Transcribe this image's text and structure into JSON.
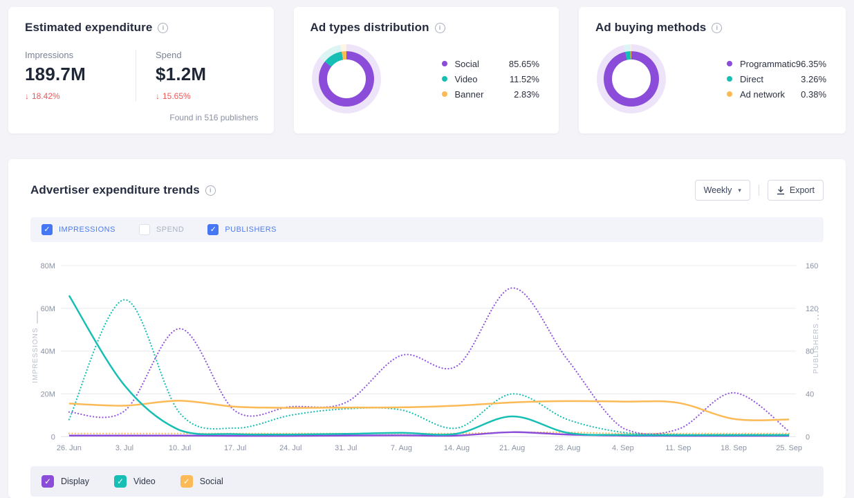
{
  "cards": {
    "expenditure": {
      "title": "Estimated expenditure",
      "metrics": [
        {
          "label": "Impressions",
          "value": "189.7M",
          "change": "18.42%",
          "direction": "down"
        },
        {
          "label": "Spend",
          "value": "$1.2M",
          "change": "15.65%",
          "direction": "down"
        }
      ],
      "footnote": "Found in 516 publishers"
    },
    "ad_types": {
      "title": "Ad types distribution",
      "slices": [
        {
          "label": "Social",
          "value": 85.65,
          "pct": "85.65%",
          "color": "#8A4CD9"
        },
        {
          "label": "Video",
          "value": 11.52,
          "pct": "11.52%",
          "color": "#17BEB4"
        },
        {
          "label": "Banner",
          "value": 2.83,
          "pct": "2.83%",
          "color": "#FBBA56"
        }
      ]
    },
    "ad_buying": {
      "title": "Ad buying methods",
      "slices": [
        {
          "label": "Programmatic",
          "value": 96.35,
          "pct": "96.35%",
          "color": "#8A4CD9"
        },
        {
          "label": "Direct",
          "value": 3.26,
          "pct": "3.26%",
          "color": "#17BEB4"
        },
        {
          "label": "Ad network",
          "value": 0.38,
          "pct": "0.38%",
          "color": "#FBBA56"
        }
      ]
    }
  },
  "trends": {
    "title": "Advertiser expenditure trends",
    "period_select": "Weekly",
    "export_label": "Export",
    "metric_toggles": [
      {
        "label": "IMPRESSIONS",
        "checked": true
      },
      {
        "label": "SPEND",
        "checked": false
      },
      {
        "label": "PUBLISHERS",
        "checked": true
      }
    ],
    "series_toggles": [
      {
        "label": "Display",
        "color": "#8A4CD9",
        "checked": true
      },
      {
        "label": "Video",
        "color": "#17BEB4",
        "checked": true
      },
      {
        "label": "Social",
        "color": "#FBBA56",
        "checked": true
      }
    ]
  },
  "chart_data": {
    "type": "line",
    "x": [
      "26. Jun",
      "3. Jul",
      "10. Jul",
      "17. Jul",
      "24. Jul",
      "31. Jul",
      "7. Aug",
      "14. Aug",
      "21. Aug",
      "28. Aug",
      "4. Sep",
      "11. Sep",
      "18. Sep",
      "25. Sep"
    ],
    "left_axis": {
      "label": "IMPRESSIONS",
      "ticks": [
        "80M",
        "60M",
        "40M",
        "20M",
        "0"
      ],
      "range": [
        0,
        80
      ],
      "unit": "M impressions"
    },
    "right_axis": {
      "label": "PUBLISHERS",
      "ticks": [
        "160",
        "120",
        "80",
        "40",
        "0"
      ],
      "range": [
        0,
        160
      ],
      "unit": "publishers"
    },
    "grid": true,
    "series": [
      {
        "name": "Social publishers",
        "axis": "right",
        "style": "dotted",
        "color": "#FBBA56",
        "values": [
          3,
          3,
          3,
          3,
          3,
          3,
          3,
          3,
          4,
          4,
          3,
          3,
          3,
          3
        ]
      },
      {
        "name": "Video publishers",
        "axis": "right",
        "style": "dotted",
        "color": "#17BEB4",
        "values": [
          16,
          128,
          22,
          8,
          20,
          26,
          25,
          8,
          40,
          16,
          4,
          2,
          2,
          2
        ]
      },
      {
        "name": "Display publishers",
        "axis": "right",
        "style": "dotted",
        "color": "#9257E0",
        "values": [
          23,
          24,
          101,
          24,
          28,
          32,
          76,
          66,
          139,
          72,
          8,
          7,
          41,
          5
        ]
      },
      {
        "name": "Social impressions",
        "axis": "left",
        "style": "solid",
        "color": "#FBBA56",
        "values": [
          15.5,
          14.5,
          16.8,
          14,
          13.5,
          13.6,
          13.7,
          14.5,
          16,
          16.6,
          16.4,
          15.8,
          8.3,
          8
        ]
      },
      {
        "name": "Display impressions",
        "axis": "left",
        "style": "solid",
        "color": "#8A4CD9",
        "values": [
          0.5,
          0.5,
          0.5,
          0.4,
          0.4,
          0.5,
          0.6,
          0.5,
          2.1,
          1,
          0.5,
          0.4,
          0.4,
          0.4
        ]
      },
      {
        "name": "Video impressions",
        "axis": "left",
        "style": "solid",
        "color": "#17BEB4",
        "values": [
          66,
          24,
          3,
          1.2,
          1,
          1.3,
          1.8,
          1.4,
          9.5,
          1.8,
          0.8,
          0.7,
          0.7,
          0.7
        ]
      }
    ]
  }
}
